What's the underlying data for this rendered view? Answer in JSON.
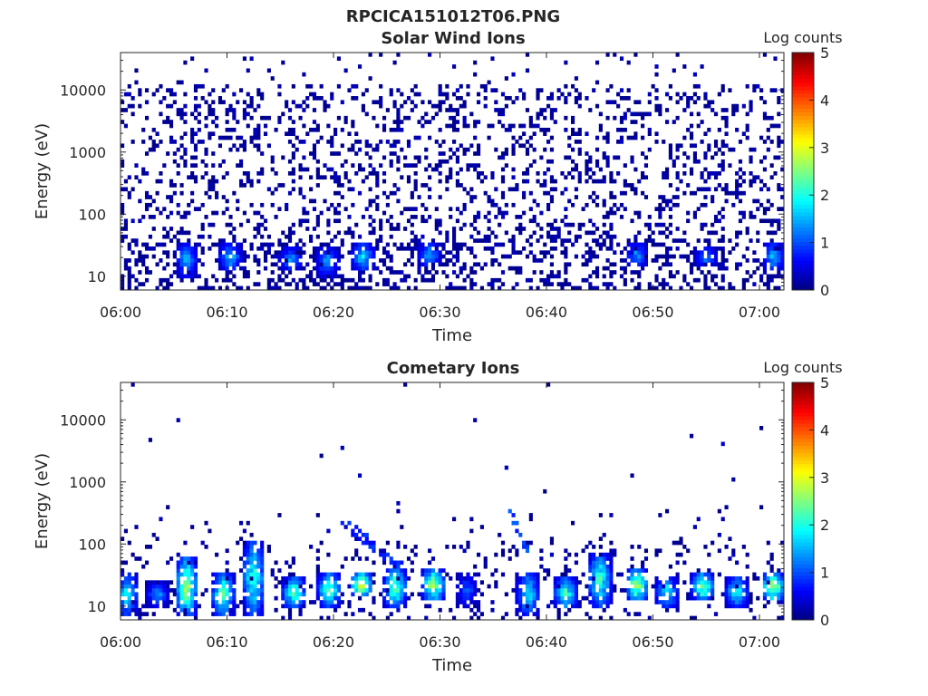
{
  "figure": {
    "title": "RPCICA151012T06.PNG"
  },
  "colorbar": {
    "label": "Log counts",
    "ticks": [
      "0",
      "1",
      "2",
      "3",
      "4",
      "5"
    ],
    "range": [
      0,
      5
    ],
    "colormap": "jet"
  },
  "chart_data": [
    {
      "type": "heatmap",
      "title": "Solar Wind Ions",
      "xlabel": "Time",
      "ylabel": "Energy (eV)",
      "x_ticks": [
        "06:00",
        "06:10",
        "06:20",
        "06:30",
        "06:40",
        "06:50",
        "07:00"
      ],
      "y_ticks": [
        "10",
        "100",
        "1000",
        "10000"
      ],
      "y_scale": "log",
      "x_range": [
        "06:00",
        "07:02"
      ],
      "y_range": [
        6,
        40000
      ],
      "clim": [
        0,
        5
      ],
      "bursts": [
        {
          "time_min": 6.2,
          "energy_eV": [
            10,
            35
          ],
          "peak_log_counts": 1.6
        },
        {
          "time_min": 10.3,
          "energy_eV": [
            12,
            35
          ],
          "peak_log_counts": 1.7
        },
        {
          "time_min": 16.0,
          "energy_eV": [
            12,
            30
          ],
          "peak_log_counts": 1.5
        },
        {
          "time_min": 19.4,
          "energy_eV": [
            10,
            30
          ],
          "peak_log_counts": 1.6
        },
        {
          "time_min": 22.8,
          "energy_eV": [
            12,
            35
          ],
          "peak_log_counts": 1.9
        },
        {
          "time_min": 29.0,
          "energy_eV": [
            14,
            35
          ],
          "peak_log_counts": 1.6
        },
        {
          "time_min": 48.5,
          "energy_eV": [
            14,
            35
          ],
          "peak_log_counts": 1.5
        },
        {
          "time_min": 55.0,
          "energy_eV": [
            14,
            30
          ],
          "peak_log_counts": 1.4
        },
        {
          "time_min": 61.3,
          "energy_eV": [
            12,
            35
          ],
          "peak_log_counts": 1.7
        }
      ],
      "background": "sparse low counts (log counts ~0-0.5) scattered over 10 eV - 30000 eV"
    },
    {
      "type": "heatmap",
      "title": "Cometary Ions",
      "xlabel": "Time",
      "ylabel": "Energy (eV)",
      "x_ticks": [
        "06:00",
        "06:10",
        "06:20",
        "06:30",
        "06:40",
        "06:50",
        "07:00"
      ],
      "y_ticks": [
        "10",
        "100",
        "1000",
        "10000"
      ],
      "y_scale": "log",
      "x_range": [
        "06:00",
        "07:02"
      ],
      "y_range": [
        6,
        40000
      ],
      "clim": [
        0,
        5
      ],
      "bursts": [
        {
          "time_min": 0.6,
          "energy_eV": [
            7,
            35
          ],
          "peak_log_counts": 2.0
        },
        {
          "time_min": 3.5,
          "energy_eV": [
            10,
            25
          ],
          "peak_log_counts": 1.5
        },
        {
          "time_min": 6.2,
          "energy_eV": [
            7,
            60
          ],
          "peak_log_counts": 3.0
        },
        {
          "time_min": 9.6,
          "energy_eV": [
            7,
            35
          ],
          "peak_log_counts": 2.6
        },
        {
          "time_min": 12.5,
          "energy_eV": [
            7,
            110
          ],
          "peak_log_counts": 2.4
        },
        {
          "time_min": 16.3,
          "energy_eV": [
            9,
            30
          ],
          "peak_log_counts": 2.6
        },
        {
          "time_min": 19.6,
          "energy_eV": [
            10,
            35
          ],
          "peak_log_counts": 2.6
        },
        {
          "time_min": 22.6,
          "energy_eV": [
            14,
            35
          ],
          "peak_log_counts": 3.3
        },
        {
          "time_min": 25.8,
          "energy_eV": [
            10,
            40
          ],
          "peak_log_counts": 2.8
        },
        {
          "time_min": 29.4,
          "energy_eV": [
            12,
            40
          ],
          "peak_log_counts": 3.1
        },
        {
          "time_min": 32.5,
          "energy_eV": [
            10,
            35
          ],
          "peak_log_counts": 1.2
        },
        {
          "time_min": 38.3,
          "energy_eV": [
            7,
            35
          ],
          "peak_log_counts": 2.0
        },
        {
          "time_min": 41.8,
          "energy_eV": [
            9,
            30
          ],
          "peak_log_counts": 2.4
        },
        {
          "time_min": 45.0,
          "energy_eV": [
            10,
            70
          ],
          "peak_log_counts": 2.5
        },
        {
          "time_min": 48.5,
          "energy_eV": [
            12,
            40
          ],
          "peak_log_counts": 3.1
        },
        {
          "time_min": 51.3,
          "energy_eV": [
            9,
            30
          ],
          "peak_log_counts": 2.1
        },
        {
          "time_min": 54.7,
          "energy_eV": [
            12,
            35
          ],
          "peak_log_counts": 2.8
        },
        {
          "time_min": 57.9,
          "energy_eV": [
            10,
            30
          ],
          "peak_log_counts": 2.2
        },
        {
          "time_min": 61.3,
          "energy_eV": [
            12,
            35
          ],
          "peak_log_counts": 3.3
        }
      ],
      "dispersive_features": [
        {
          "time_min": [
            20.5,
            26.5
          ],
          "energy_eV": [
            260,
            40
          ],
          "log_counts": 0.8
        },
        {
          "time_min": [
            36.5,
            38.5
          ],
          "energy_eV": [
            360,
            60
          ],
          "log_counts": 1.0
        }
      ],
      "background": "sparse low counts mostly below 300 eV; isolated points up to ~15000 eV"
    }
  ]
}
